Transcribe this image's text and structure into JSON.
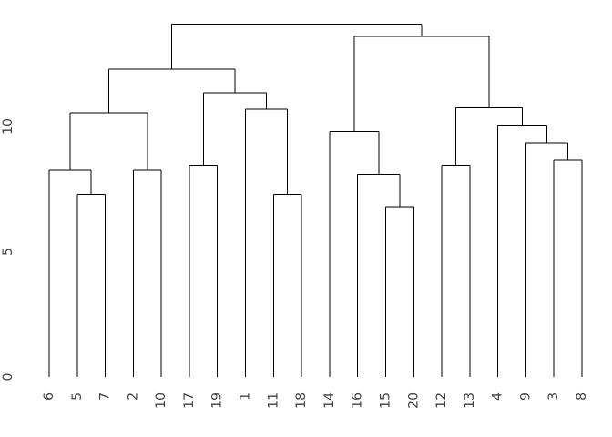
{
  "chart_data": {
    "type": "dendrogram",
    "title": "",
    "xlabel": "",
    "ylabel": "",
    "y_axis": {
      "tick_labels": [
        "0",
        "5",
        "10"
      ],
      "tick_values": [
        0,
        5,
        10
      ],
      "range": [
        0,
        14.8
      ],
      "grid": false
    },
    "leaf_labels": [
      "6",
      "5",
      "7",
      "2",
      "10",
      "17",
      "19",
      "1",
      "11",
      "18",
      "14",
      "16",
      "15",
      "20",
      "12",
      "13",
      "4",
      "9",
      "3",
      "8"
    ],
    "merge_tree": {
      "h": 14.1,
      "c": [
        {
          "h": 12.3,
          "c": [
            {
              "h": 10.55,
              "c": [
                {
                  "h": 8.25,
                  "c": [
                    {
                      "label": "6"
                    },
                    {
                      "h": 7.3,
                      "c": [
                        {
                          "label": "5"
                        },
                        {
                          "label": "7"
                        }
                      ]
                    }
                  ]
                },
                {
                  "h": 8.25,
                  "c": [
                    {
                      "label": "2"
                    },
                    {
                      "label": "10"
                    }
                  ]
                }
              ]
            },
            {
              "h": 11.35,
              "c": [
                {
                  "h": 8.45,
                  "c": [
                    {
                      "label": "17"
                    },
                    {
                      "label": "19"
                    }
                  ]
                },
                {
                  "h": 10.7,
                  "c": [
                    {
                      "label": "1"
                    },
                    {
                      "h": 7.3,
                      "c": [
                        {
                          "label": "11"
                        },
                        {
                          "label": "18"
                        }
                      ]
                    }
                  ]
                }
              ]
            }
          ]
        },
        {
          "h": 13.6,
          "c": [
            {
              "h": 9.8,
              "c": [
                {
                  "label": "14"
                },
                {
                  "h": 8.1,
                  "c": [
                    {
                      "label": "16"
                    },
                    {
                      "h": 6.8,
                      "c": [
                        {
                          "label": "15"
                        },
                        {
                          "label": "20"
                        }
                      ]
                    }
                  ]
                }
              ]
            },
            {
              "h": 10.75,
              "c": [
                {
                  "h": 8.45,
                  "c": [
                    {
                      "label": "12"
                    },
                    {
                      "label": "13"
                    }
                  ]
                },
                {
                  "h": 10.05,
                  "c": [
                    {
                      "label": "4"
                    },
                    {
                      "h": 9.35,
                      "c": [
                        {
                          "label": "9"
                        },
                        {
                          "h": 8.65,
                          "c": [
                            {
                              "label": "3"
                            },
                            {
                              "label": "8"
                            }
                          ]
                        }
                      ]
                    }
                  ]
                }
              ]
            }
          ]
        }
      ]
    },
    "colors": {
      "line": "#000000",
      "label_text": "#404040",
      "background": "#ffffff"
    }
  }
}
